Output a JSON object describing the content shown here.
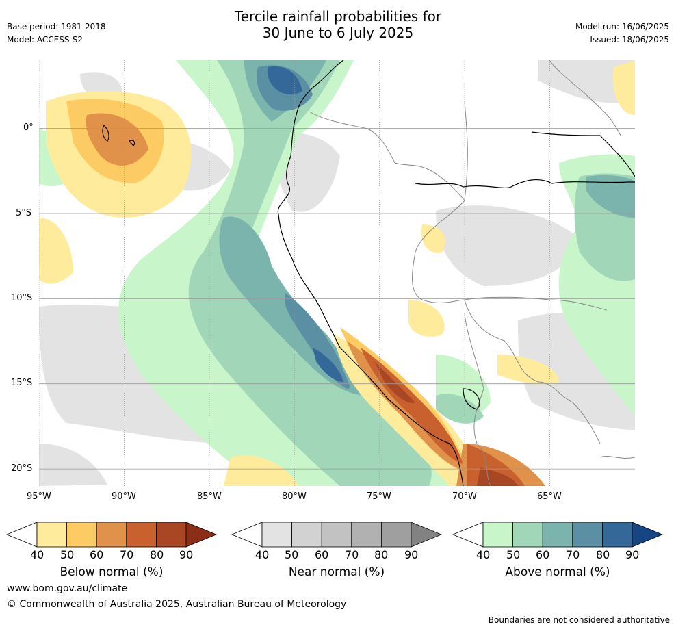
{
  "header": {
    "title_line1": "Tercile rainfall probabilities for",
    "title_line2": "30 June to 6 July 2025",
    "base_period": "Base period: 1981-2018",
    "model": "Model: ACCESS-S2",
    "model_run": "Model run: 16/06/2025",
    "issued": "Issued: 18/06/2025"
  },
  "map": {
    "lon_ticks": [
      "95°W",
      "90°W",
      "85°W",
      "80°W",
      "75°W",
      "70°W",
      "65°W"
    ],
    "lat_ticks": [
      "0°",
      "5°S",
      "10°S",
      "15°S",
      "20°S"
    ],
    "lon_range": [
      -95,
      -60
    ],
    "lat_range": [
      4,
      -21
    ]
  },
  "colorbars": [
    {
      "title": "Below normal (%)",
      "labels": [
        "40",
        "50",
        "60",
        "70",
        "80",
        "90"
      ],
      "colors": [
        "#ffffff",
        "#feeb9b",
        "#fdcb63",
        "#e0924a",
        "#c9612f",
        "#a94725",
        "#8c2d18"
      ]
    },
    {
      "title": "Near normal (%)",
      "labels": [
        "40",
        "50",
        "60",
        "70",
        "80",
        "90"
      ],
      "colors": [
        "#ffffff",
        "#e3e3e3",
        "#d2d2d2",
        "#c2c2c2",
        "#b1b1b1",
        "#9f9f9f",
        "#828282"
      ]
    },
    {
      "title": "Above normal (%)",
      "labels": [
        "40",
        "50",
        "60",
        "70",
        "80",
        "90"
      ],
      "colors": [
        "#ffffff",
        "#c8f5c9",
        "#a1d6b9",
        "#7bb3ad",
        "#5b8fa3",
        "#336898",
        "#154683"
      ]
    }
  ],
  "footer": {
    "url": "www.bom.gov.au/climate",
    "copyright": "© Commonwealth of Australia 2025, Australian Bureau of Meteorology",
    "disclaimer": "Boundaries are not considered authoritative"
  }
}
